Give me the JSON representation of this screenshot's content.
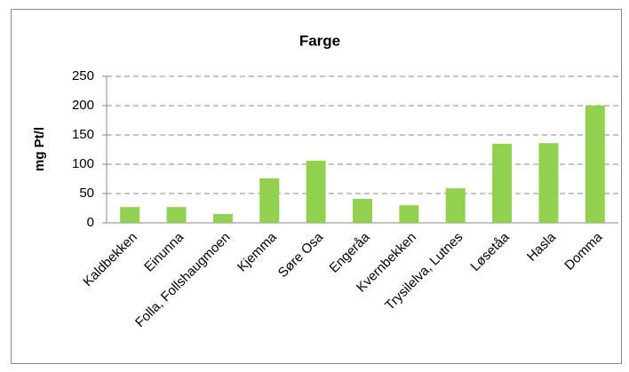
{
  "chart_data": {
    "type": "bar",
    "title": "Farge",
    "y_label": "mg Pt/l",
    "categories": [
      "Kaldbekken",
      "Einunna",
      "Folla, Follshaugmoen",
      "Kjemma",
      "Søre Osa",
      "Engeråa",
      "Kvernbekken",
      "Trysilelva, Lutnes",
      "Løsetåa",
      "Hasla",
      "Domma"
    ],
    "values": [
      27,
      27,
      15,
      76,
      106,
      41,
      30,
      59,
      135,
      136,
      200
    ],
    "color": "#92d050",
    "ylim": [
      0,
      250
    ],
    "yticks": [
      0,
      50,
      100,
      150,
      200,
      250
    ],
    "grid": true
  }
}
